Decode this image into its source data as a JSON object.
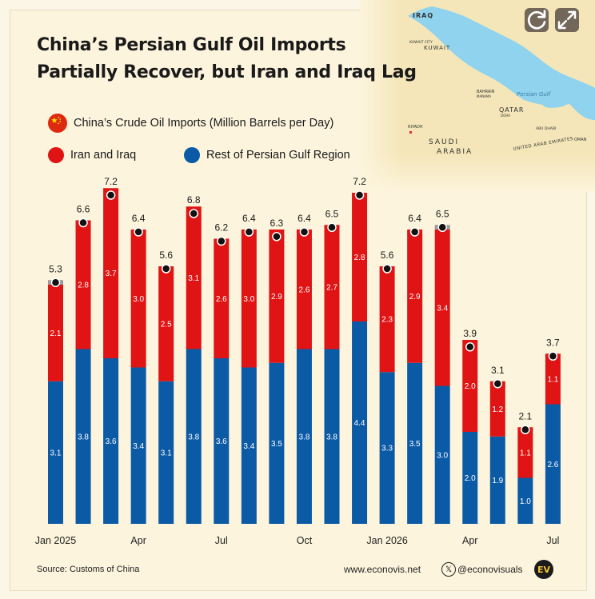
{
  "title": {
    "line1": "China’s Persian Gulf Oil Imports",
    "line2": "Partially Recover, but Iran and Iraq Lag"
  },
  "subtitle": "China’s Crude Oil Imports (Million Barrels per Day)",
  "legend": {
    "iran_iraq": "Iran and Iraq",
    "rest": "Rest of Persian Gulf Region"
  },
  "colors": {
    "iran_iraq": "#e01414",
    "rest": "#0b5aa6",
    "background": "#fcf4dc"
  },
  "map": {
    "labels": {
      "iraq": "IRAQ",
      "kuwait": "KUWAIT",
      "kuwait_city": "KUWAIT CITY",
      "bahrain": "BAHRAIN",
      "manama": "MANAMA",
      "qatar": "QATAR",
      "doha": "DOHA",
      "persian_gulf": "Persian Gulf",
      "riyadh": "RIYADH",
      "saudi": "SAUDI",
      "arabia": "ARABIA",
      "abu_dhabi": "ABU DHABI",
      "uae": "UNITED ARAB EMIRATES",
      "oman": "OMAN"
    },
    "buttons": {
      "refresh_icon": "refresh-icon",
      "expand_icon": "expand-icon"
    }
  },
  "chart_data": {
    "type": "bar",
    "stacked": true,
    "categories": [
      "Jan 2025",
      "Feb 2025",
      "Mar 2025",
      "Apr 2025",
      "May 2025",
      "Jun 2025",
      "Jul 2025",
      "Aug 2025",
      "Sep 2025",
      "Oct 2025",
      "Nov 2025",
      "Dec 2025",
      "Jan 2026",
      "Feb 2026",
      "Mar 2026",
      "Apr 2026",
      "May 2026",
      "Jun 2026",
      "Jul 2026"
    ],
    "x_tick_labels": [
      "Jan 2025",
      "",
      "",
      "Apr",
      "",
      "",
      "Jul",
      "",
      "",
      "Oct",
      "",
      "",
      "Jan 2026",
      "",
      "",
      "Apr",
      "",
      "",
      "Jul"
    ],
    "series": [
      {
        "name": "Rest of Persian Gulf Region",
        "values": [
          3.1,
          3.8,
          3.6,
          3.4,
          3.1,
          3.8,
          3.6,
          3.4,
          3.5,
          3.8,
          3.8,
          4.4,
          3.3,
          3.5,
          3.0,
          2.0,
          1.9,
          1.0,
          2.6
        ]
      },
      {
        "name": "Iran and Iraq",
        "values": [
          2.1,
          2.8,
          3.7,
          3.0,
          2.5,
          3.1,
          2.6,
          3.0,
          2.9,
          2.6,
          2.7,
          2.8,
          2.3,
          2.9,
          3.4,
          2.0,
          1.2,
          1.1,
          1.1
        ]
      }
    ],
    "totals": [
      5.3,
      6.6,
      7.2,
      6.4,
      5.6,
      6.8,
      6.2,
      6.4,
      6.3,
      6.4,
      6.5,
      7.2,
      5.6,
      6.4,
      6.5,
      3.9,
      3.1,
      2.1,
      3.7
    ],
    "ylim": [
      0,
      7.8
    ],
    "grid": false,
    "legend_position": "top-left"
  },
  "footer": {
    "source": "Source: Customs of China",
    "website": "www.econovis.net",
    "handle": "@econovisuals",
    "logo_text": "EV"
  }
}
